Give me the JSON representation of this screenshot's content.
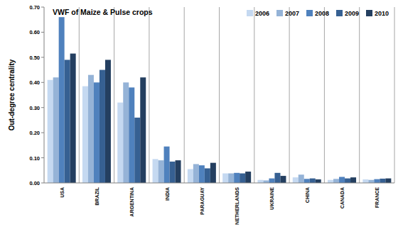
{
  "chart_data": {
    "type": "bar",
    "title": "VWF of Maize & Pulse crops",
    "y_label": "Out-degree centrality",
    "categories": [
      "USA",
      "BRAZIL",
      "ARGENTINA",
      "INDIA",
      "PARAGUAY",
      "NETHERLANDS",
      "UKRAINE",
      "CHINA",
      "CANADA",
      "FRANCE"
    ],
    "series": [
      {
        "name": "2006",
        "color": "#c5d9f1",
        "values": [
          0.41,
          0.385,
          0.32,
          0.095,
          0.055,
          0.038,
          0.012,
          0.022,
          0.012,
          0.014
        ]
      },
      {
        "name": "2007",
        "color": "#95b3d7",
        "values": [
          0.42,
          0.43,
          0.4,
          0.09,
          0.075,
          0.038,
          0.01,
          0.033,
          0.016,
          0.012
        ]
      },
      {
        "name": "2008",
        "color": "#4f81bd",
        "values": [
          0.66,
          0.4,
          0.38,
          0.145,
          0.07,
          0.04,
          0.018,
          0.016,
          0.024,
          0.015
        ]
      },
      {
        "name": "2009",
        "color": "#366092",
        "values": [
          0.49,
          0.45,
          0.26,
          0.085,
          0.058,
          0.038,
          0.04,
          0.018,
          0.018,
          0.017
        ]
      },
      {
        "name": "2010",
        "color": "#243f60",
        "values": [
          0.515,
          0.49,
          0.42,
          0.09,
          0.08,
          0.045,
          0.028,
          0.014,
          0.022,
          0.018
        ]
      }
    ],
    "ylim": [
      0,
      0.7
    ],
    "yticks": [
      {
        "value": 0,
        "label": "0.00"
      },
      {
        "value": 0.1,
        "label": "0.10"
      },
      {
        "value": 0.2,
        "label": "0.20"
      },
      {
        "value": 0.3,
        "label": "0.30"
      },
      {
        "value": 0.4,
        "label": "0.40"
      },
      {
        "value": 0.5,
        "label": "0.50"
      },
      {
        "value": 0.6,
        "label": "0.60"
      },
      {
        "value": 0.7,
        "label": "0.70"
      }
    ],
    "legend": "top-right"
  }
}
